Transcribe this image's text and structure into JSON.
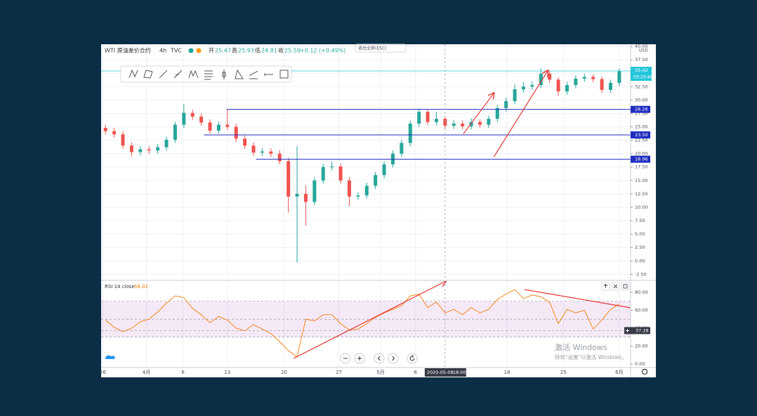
{
  "window": {
    "exit_fullscreen": "退出全屏(ESC)",
    "activate_title": "激活 Windows",
    "activate_hint": "转到\"设置\"以激活 Windows。"
  },
  "chart_data": [
    {
      "type": "candlestick",
      "title": "WTI 原油差价合约",
      "interval": "4h",
      "source": "TVC",
      "unit": "USD",
      "legend_values": [
        {
          "label": "开",
          "value": 25.47
        },
        {
          "label": "高",
          "value": 25.93
        },
        {
          "label": "低",
          "value": 24.81
        },
        {
          "label": "收",
          "value": 25.59
        }
      ],
      "change": "+0.12 (+0.49%)",
      "x": [
        0,
        1,
        2,
        3,
        4,
        5,
        6,
        7,
        8,
        9,
        10,
        11,
        12,
        13,
        14,
        15,
        16,
        17,
        18,
        19,
        20,
        21,
        22,
        23,
        24,
        25,
        26,
        27,
        28,
        29,
        30,
        31,
        32,
        33,
        34,
        35,
        36,
        37,
        38,
        39,
        40,
        41,
        42,
        43,
        44,
        45,
        46,
        47,
        48,
        49,
        50,
        51,
        52,
        53,
        54,
        55,
        56,
        57,
        58,
        59
      ],
      "open": [
        24.8,
        24.2,
        23.6,
        21.5,
        20.3,
        20.8,
        20.6,
        21.2,
        22.6,
        25.4,
        27.6,
        26.9,
        25.8,
        24.3,
        25.4,
        25.0,
        22.8,
        21.5,
        20.2,
        20.4,
        20.0,
        18.6,
        12.0,
        12.5,
        11.0,
        15.0,
        17.5,
        17.6,
        15.0,
        12.0,
        12.2,
        14.0,
        16.0,
        18.0,
        20.0,
        22.0,
        25.6,
        27.8,
        25.9,
        26.5,
        25.2,
        25.6,
        25.1,
        25.9,
        25.4,
        26.5,
        28.5,
        29.8,
        32.0,
        32.5,
        32.8,
        34.9,
        33.8,
        31.6,
        32.8,
        34.0,
        34.3,
        33.9,
        31.9,
        33.2
      ],
      "high": [
        25.4,
        24.8,
        24.2,
        22.1,
        21.4,
        21.4,
        21.8,
        23.2,
        26.0,
        29.2,
        28.2,
        27.5,
        26.4,
        26.0,
        28.3,
        25.6,
        23.4,
        22.1,
        21.0,
        21.0,
        20.6,
        19.2,
        21.4,
        14.0,
        15.6,
        18.1,
        18.5,
        18.2,
        15.6,
        12.8,
        14.6,
        16.6,
        18.6,
        20.6,
        22.6,
        26.2,
        28.4,
        28.2,
        27.8,
        27.0,
        26.3,
        26.2,
        26.6,
        26.4,
        27.1,
        29.1,
        30.4,
        32.9,
        33.3,
        33.5,
        35.9,
        35.4,
        34.2,
        33.4,
        34.6,
        34.9,
        34.8,
        34.4,
        33.8,
        35.9
      ],
      "low": [
        23.6,
        23.0,
        20.9,
        19.5,
        19.7,
        20.0,
        20.0,
        20.6,
        22.0,
        24.8,
        26.3,
        25.2,
        23.7,
        23.7,
        24.4,
        22.2,
        20.9,
        19.6,
        19.6,
        19.4,
        18.0,
        9.0,
        -0.3,
        6.6,
        10.4,
        14.4,
        16.9,
        14.4,
        10.2,
        11.4,
        11.6,
        13.4,
        15.4,
        17.4,
        19.4,
        21.4,
        25.0,
        25.3,
        25.3,
        24.6,
        24.6,
        24.5,
        24.5,
        24.8,
        24.8,
        25.9,
        27.9,
        29.2,
        31.4,
        31.9,
        32.2,
        33.2,
        30.8,
        31.0,
        32.2,
        33.4,
        33.3,
        31.3,
        31.3,
        32.6
      ],
      "close": [
        24.2,
        23.6,
        21.5,
        20.3,
        20.8,
        20.6,
        21.2,
        22.6,
        25.4,
        27.6,
        26.9,
        25.8,
        24.3,
        25.4,
        25.0,
        22.8,
        21.5,
        20.2,
        20.4,
        20.0,
        18.6,
        12.0,
        12.5,
        11.0,
        15.0,
        17.5,
        17.6,
        15.0,
        12.0,
        12.2,
        14.0,
        16.0,
        18.0,
        20.0,
        22.0,
        25.6,
        27.8,
        25.9,
        26.5,
        25.2,
        25.6,
        25.1,
        25.9,
        25.4,
        26.5,
        28.5,
        29.8,
        32.0,
        32.5,
        32.8,
        34.9,
        33.8,
        31.6,
        32.8,
        34.0,
        34.3,
        33.9,
        31.9,
        33.2,
        35.4
      ],
      "colors": {
        "up": "#26a69a",
        "down": "#ef5350"
      },
      "xlim": [
        -0.5,
        60.3
      ],
      "xticks": [
        {
          "value": -0.3,
          "label": "26"
        },
        {
          "value": 4.7,
          "label": "4月"
        },
        {
          "value": 8.9,
          "label": "6"
        },
        {
          "value": 14.0,
          "label": "13"
        },
        {
          "value": 20.5,
          "label": "20"
        },
        {
          "value": 26.8,
          "label": "27"
        },
        {
          "value": 31.6,
          "label": "5月"
        },
        {
          "value": 35.6,
          "label": "6"
        },
        {
          "value": 46.1,
          "label": "18"
        },
        {
          "value": 52.6,
          "label": "25"
        },
        {
          "value": 59.0,
          "label": "6月"
        }
      ],
      "ylim": [
        -3.5,
        40.4
      ],
      "yticks": [
        {
          "value": -2.5,
          "label": "-2.50"
        },
        {
          "value": 0,
          "label": "0.00"
        },
        {
          "value": 2.5,
          "label": "2.50"
        },
        {
          "value": 5,
          "label": "5.00"
        },
        {
          "value": 7.5,
          "label": "7.50"
        },
        {
          "value": 10,
          "label": "10.00"
        },
        {
          "value": 12.5,
          "label": "12.50"
        },
        {
          "value": 15,
          "label": "15.00"
        },
        {
          "value": 17.5,
          "label": "17.50"
        },
        {
          "value": 20,
          "label": "20.00"
        },
        {
          "value": 22.5,
          "label": "22.50"
        },
        {
          "value": 25,
          "label": "25.00"
        },
        {
          "value": 27.5,
          "label": "27.50"
        },
        {
          "value": 30,
          "label": "30.00"
        },
        {
          "value": 32.5,
          "label": "32.50"
        },
        {
          "value": 35,
          "label": "35.00"
        },
        {
          "value": 37.5,
          "label": "37.50"
        },
        {
          "value": 40,
          "label": "40.00"
        }
      ],
      "grid": true,
      "last_price": {
        "value": 35.42,
        "countdown": "03:20:46",
        "color": "#26c6da"
      },
      "levels": {
        "values": [
          28.26,
          23.5,
          18.96
        ],
        "value_labels": [
          "28.26",
          "23.50",
          "18.96"
        ],
        "x_start": [
          13.9,
          11.3,
          17.3
        ],
        "color": "#1f2bc0"
      },
      "drawings": [
        {
          "x": [
            41.1,
            44.6
          ],
          "y": [
            23.7,
            31.3
          ]
        },
        {
          "x": [
            44.6,
            50.8
          ],
          "y": [
            19.4,
            35.5
          ]
        }
      ],
      "drawing_color": "#e53935",
      "crosshair": {
        "x": 39.0,
        "date": "2020-05-08",
        "time": "18:00"
      }
    },
    {
      "type": "line",
      "title": "RSI 14 close",
      "readout": 58.01,
      "x": [
        0,
        1,
        2,
        3,
        4,
        5,
        6,
        7,
        8,
        9,
        10,
        11,
        12,
        13,
        14,
        15,
        16,
        17,
        18,
        19,
        20,
        21,
        22,
        23,
        24,
        25,
        26,
        27,
        28,
        29,
        30,
        31,
        32,
        33,
        34,
        35,
        36,
        37,
        38,
        39,
        40,
        41,
        42,
        43,
        44,
        45,
        46,
        47,
        48,
        49,
        50,
        51,
        52,
        53,
        54,
        55,
        56,
        57,
        58,
        59
      ],
      "series": [
        {
          "color": "#f57c00",
          "values": [
            49,
            41,
            36,
            40,
            47,
            50,
            58,
            68,
            76,
            74,
            62,
            55,
            46,
            53,
            49,
            40,
            37,
            44,
            39,
            34,
            25,
            15,
            8,
            50,
            48,
            55,
            55,
            45,
            38,
            39,
            45,
            52,
            57,
            61,
            65,
            76,
            78,
            63,
            69,
            57,
            61,
            55,
            63,
            57,
            61,
            72,
            78,
            83,
            73,
            77,
            75,
            69,
            45,
            61,
            57,
            60,
            39,
            49,
            61,
            67
          ]
        }
      ],
      "xlim": [
        -0.5,
        60.3
      ],
      "ylim": [
        -3.9,
        92.5
      ],
      "yticks": [
        {
          "value": 0,
          "label": "0.00"
        },
        {
          "value": 20,
          "label": "20.00"
        },
        {
          "value": 40,
          "label": "40.00"
        },
        {
          "value": 60,
          "label": "60.00"
        },
        {
          "value": 80,
          "label": "80.00"
        }
      ],
      "band": [
        30,
        70
      ],
      "band_color": "#9c27b0",
      "midline": 50,
      "crosshair_value": 37.28,
      "drawings": [
        {
          "x": [
            21.6,
            39.1
          ],
          "y": [
            6.3,
            92.5
          ]
        },
        {
          "x": [
            48.1,
            60.3
          ],
          "y": [
            83.1,
            62.7
          ]
        }
      ],
      "drawing_color": "#e53935"
    }
  ]
}
